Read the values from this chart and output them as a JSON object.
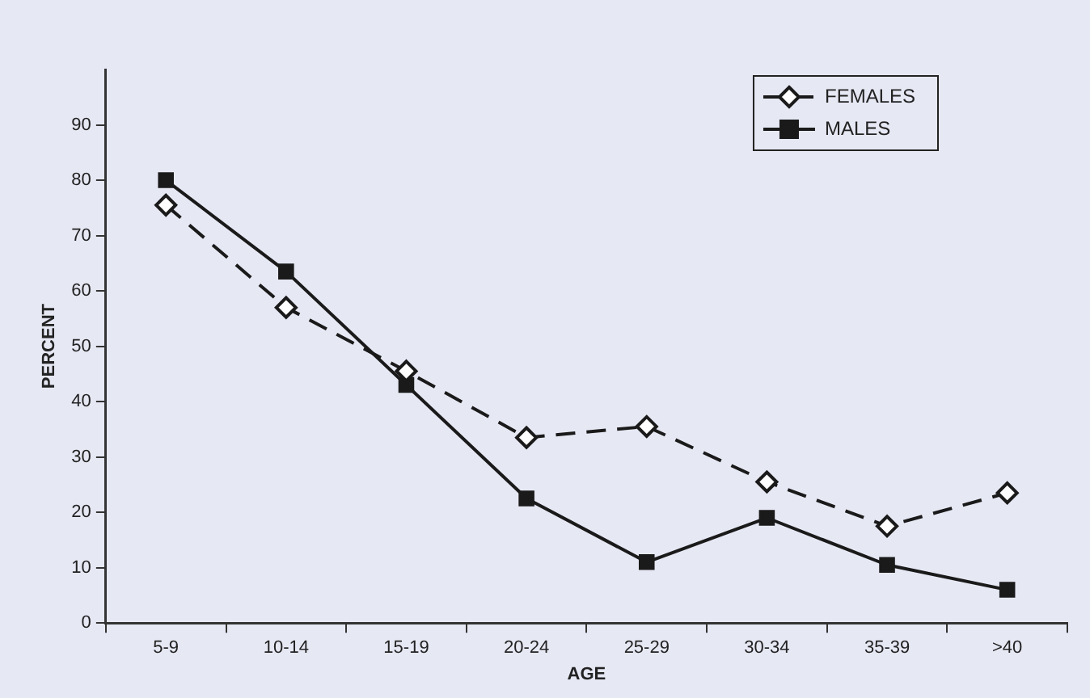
{
  "chart_data": {
    "type": "line",
    "xlabel": "AGE",
    "ylabel": "PERCENT",
    "categories": [
      "5-9",
      "10-14",
      "15-19",
      "20-24",
      "25-29",
      "30-34",
      "35-39",
      ">40"
    ],
    "series": [
      {
        "name": "FEMALES",
        "color": "#1a1a1a",
        "marker": "diamond",
        "line_style": "dashed",
        "values": [
          75.5,
          57,
          45.5,
          33.5,
          35.5,
          25.5,
          17.5,
          23.5
        ]
      },
      {
        "name": "MALES",
        "color": "#1a1a1a",
        "marker": "square",
        "line_style": "solid",
        "values": [
          80,
          63.5,
          43,
          22.5,
          11,
          19,
          10.5,
          6
        ]
      }
    ],
    "ylim": [
      0,
      100
    ],
    "yticks": [
      0,
      10,
      20,
      30,
      40,
      50,
      60,
      70,
      80,
      90
    ],
    "grid": false,
    "legend": "top right"
  }
}
